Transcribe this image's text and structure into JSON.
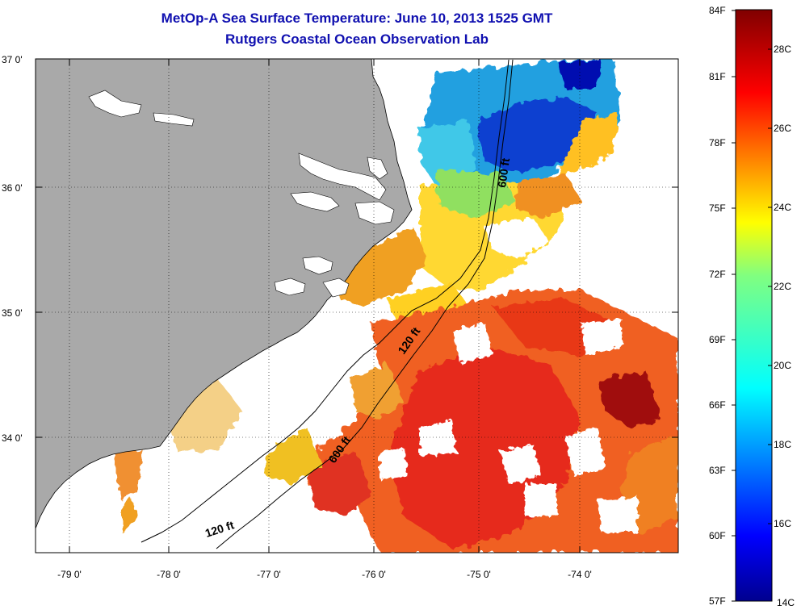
{
  "title": "MetOp-A Sea Surface Temperature:  June 10, 2013 1525 GMT",
  "subtitle": "Rutgers Coastal Ocean Observation Lab",
  "axes": {
    "lat_ticks": [
      "37 0'",
      "36 0'",
      "35 0'",
      "34 0'"
    ],
    "lon_ticks": [
      "-79 0'",
      "-78 0'",
      "-77 0'",
      "-76 0'",
      "-75 0'",
      "-74 0'"
    ]
  },
  "contours": {
    "c120_a": "120 ft",
    "c120_b": "120 ft",
    "c600_a": "600 ft",
    "c600_b": "600 ft"
  },
  "colorbar": {
    "fahrenheit": [
      "84F",
      "81F",
      "78F",
      "75F",
      "72F",
      "69F",
      "66F",
      "63F",
      "60F",
      "57F"
    ],
    "celsius": [
      "28C",
      "26C",
      "24C",
      "22C",
      "20C",
      "18C",
      "16C",
      "14C"
    ]
  },
  "colors": {
    "land": "#a9a9a9",
    "water_nodata": "#ffffff",
    "title": "#1010b0"
  }
}
